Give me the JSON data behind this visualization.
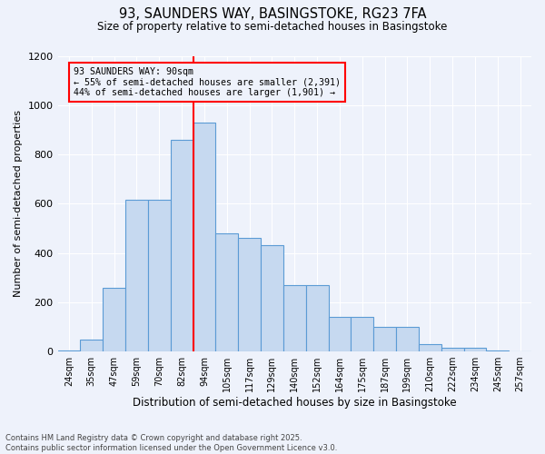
{
  "title1": "93, SAUNDERS WAY, BASINGSTOKE, RG23 7FA",
  "title2": "Size of property relative to semi-detached houses in Basingstoke",
  "xlabel": "Distribution of semi-detached houses by size in Basingstoke",
  "ylabel": "Number of semi-detached properties",
  "categories": [
    "24sqm",
    "35sqm",
    "47sqm",
    "59sqm",
    "70sqm",
    "82sqm",
    "94sqm",
    "105sqm",
    "117sqm",
    "129sqm",
    "140sqm",
    "152sqm",
    "164sqm",
    "175sqm",
    "187sqm",
    "199sqm",
    "210sqm",
    "222sqm",
    "234sqm",
    "245sqm",
    "257sqm"
  ],
  "values": [
    5,
    50,
    260,
    615,
    615,
    860,
    930,
    480,
    460,
    430,
    270,
    270,
    140,
    140,
    100,
    100,
    30,
    15,
    15,
    3,
    2
  ],
  "bar_color": "#c6d9f0",
  "bar_edge_color": "#5b9bd5",
  "vline_color": "red",
  "property_label": "93 SAUNDERS WAY: 90sqm",
  "smaller_text": "← 55% of semi-detached houses are smaller (2,391)",
  "larger_text": "44% of semi-detached houses are larger (1,901) →",
  "annotation_box_color": "red",
  "ylim": [
    0,
    1200
  ],
  "yticks": [
    0,
    200,
    400,
    600,
    800,
    1000,
    1200
  ],
  "footer1": "Contains HM Land Registry data © Crown copyright and database right 2025.",
  "footer2": "Contains public sector information licensed under the Open Government Licence v3.0.",
  "bg_color": "#eef2fb",
  "grid_color": "#ffffff"
}
